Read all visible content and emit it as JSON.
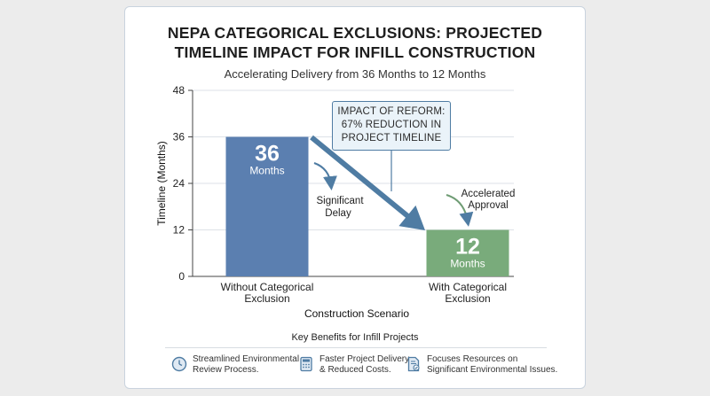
{
  "title_line1": "NEPA CATEGORICAL EXCLUSIONS: PROJECTED",
  "title_line2": "TIMELINE IMPACT FOR INFILL CONSTRUCTION",
  "subtitle": "Accelerating Delivery from 36 Months to 12 Months",
  "callout": {
    "line1": "IMPACT OF REFORM:",
    "line2": "67% REDUCTION IN",
    "line3": "PROJECT TIMELINE"
  },
  "annotations": {
    "left_line1": "Significant",
    "left_line2": "Delay",
    "right_line1": "Accelerated",
    "right_line2": "Approval"
  },
  "benefits": {
    "title": "Key Benefits for Infill Projects",
    "items": [
      {
        "icon": "clock-icon",
        "line1": "Streamlined Environmental",
        "line2": "Review Process."
      },
      {
        "icon": "calculator-icon",
        "line1": "Faster Project Delivery",
        "line2": "& Reduced Costs."
      },
      {
        "icon": "document-check-icon",
        "line1": "Focuses Resources on",
        "line2": "Significant Environmental Issues."
      }
    ]
  },
  "colors": {
    "bar_without": "#5b7fb0",
    "bar_with": "#79ab7b",
    "arrow": "#4f7ca3"
  },
  "chart_data": {
    "type": "bar",
    "categories": [
      [
        "Without Categorical",
        "Exclusion"
      ],
      [
        "With Categorical",
        "Exclusion"
      ]
    ],
    "values": [
      36,
      12
    ],
    "value_labels": [
      "36",
      "12"
    ],
    "unit_label": "Months",
    "xlabel": "Construction Scenario",
    "ylabel": "Timeline (Months)",
    "ylim": [
      0,
      48
    ],
    "yticks": [
      0,
      12,
      24,
      36,
      48
    ],
    "grid": true
  }
}
